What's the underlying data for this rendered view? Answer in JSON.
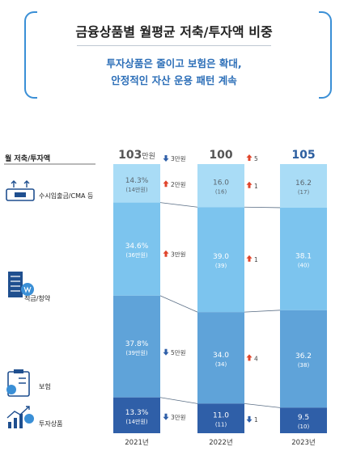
{
  "header": {
    "title": "금융상품별 월평균 저축/투자액 비중",
    "subtitle_lines": [
      "투자상품은 줄이고 보험은 확대,",
      "안정적인 자산 운용 패턴 계속"
    ]
  },
  "colors": {
    "bracket": "#3a8fd6",
    "subtitle": "#2d6fb8",
    "up_arrow": "#e0442b",
    "down_arrow": "#2f5fa8",
    "segments": [
      "#a9dcf6",
      "#7cc4ee",
      "#5fa3d9",
      "#2f5fa8"
    ],
    "segment_text": [
      "#5b6770",
      "#ffffff",
      "#ffffff",
      "#ffffff"
    ]
  },
  "chart_data": {
    "type": "bar",
    "stacked": true,
    "ylabel": "월 저축/투자액",
    "categories": [
      "2021년",
      "2022년",
      "2023년"
    ],
    "totals": [
      {
        "value": "103",
        "unit": "만원"
      },
      {
        "value": "100",
        "unit": ""
      },
      {
        "value": "105",
        "unit": ""
      }
    ],
    "total_changes": [
      {
        "dir": "down",
        "text": "3만원"
      },
      {
        "dir": "up",
        "text": "5"
      }
    ],
    "series": [
      {
        "name": "수시입출금/CMA 등",
        "values": [
          14.3,
          16.0,
          16.2
        ],
        "labels": [
          "14.3%",
          "16.0",
          "16.2"
        ],
        "amounts": [
          "(14만원)",
          "(16)",
          "(17)"
        ],
        "changes": [
          {
            "dir": "up",
            "text": "2만원"
          },
          {
            "dir": "up",
            "text": "1"
          }
        ]
      },
      {
        "name": "적금/청약",
        "values": [
          34.6,
          39.0,
          38.1
        ],
        "labels": [
          "34.6%",
          "39.0",
          "38.1"
        ],
        "amounts": [
          "(36만원)",
          "(39)",
          "(40)"
        ],
        "changes": [
          {
            "dir": "up",
            "text": "3만원"
          },
          {
            "dir": "up",
            "text": "1"
          }
        ]
      },
      {
        "name": "보험",
        "values": [
          37.8,
          34.0,
          36.2
        ],
        "labels": [
          "37.8%",
          "34.0",
          "36.2"
        ],
        "amounts": [
          "(39만원)",
          "(34)",
          "(38)"
        ],
        "changes": [
          {
            "dir": "down",
            "text": "5만원"
          },
          {
            "dir": "up",
            "text": "4"
          }
        ]
      },
      {
        "name": "투자상품",
        "values": [
          13.3,
          11.0,
          9.5
        ],
        "labels": [
          "13.3%",
          "11.0",
          "9.5"
        ],
        "amounts": [
          "(14만원)",
          "(11)",
          "(10)"
        ],
        "changes": [
          {
            "dir": "down",
            "text": "3만원"
          },
          {
            "dir": "down",
            "text": "1"
          }
        ]
      }
    ],
    "icons": [
      "cash-withdrawal-icon",
      "savings-building-icon",
      "insurance-clipboard-icon",
      "investment-growth-icon"
    ]
  }
}
